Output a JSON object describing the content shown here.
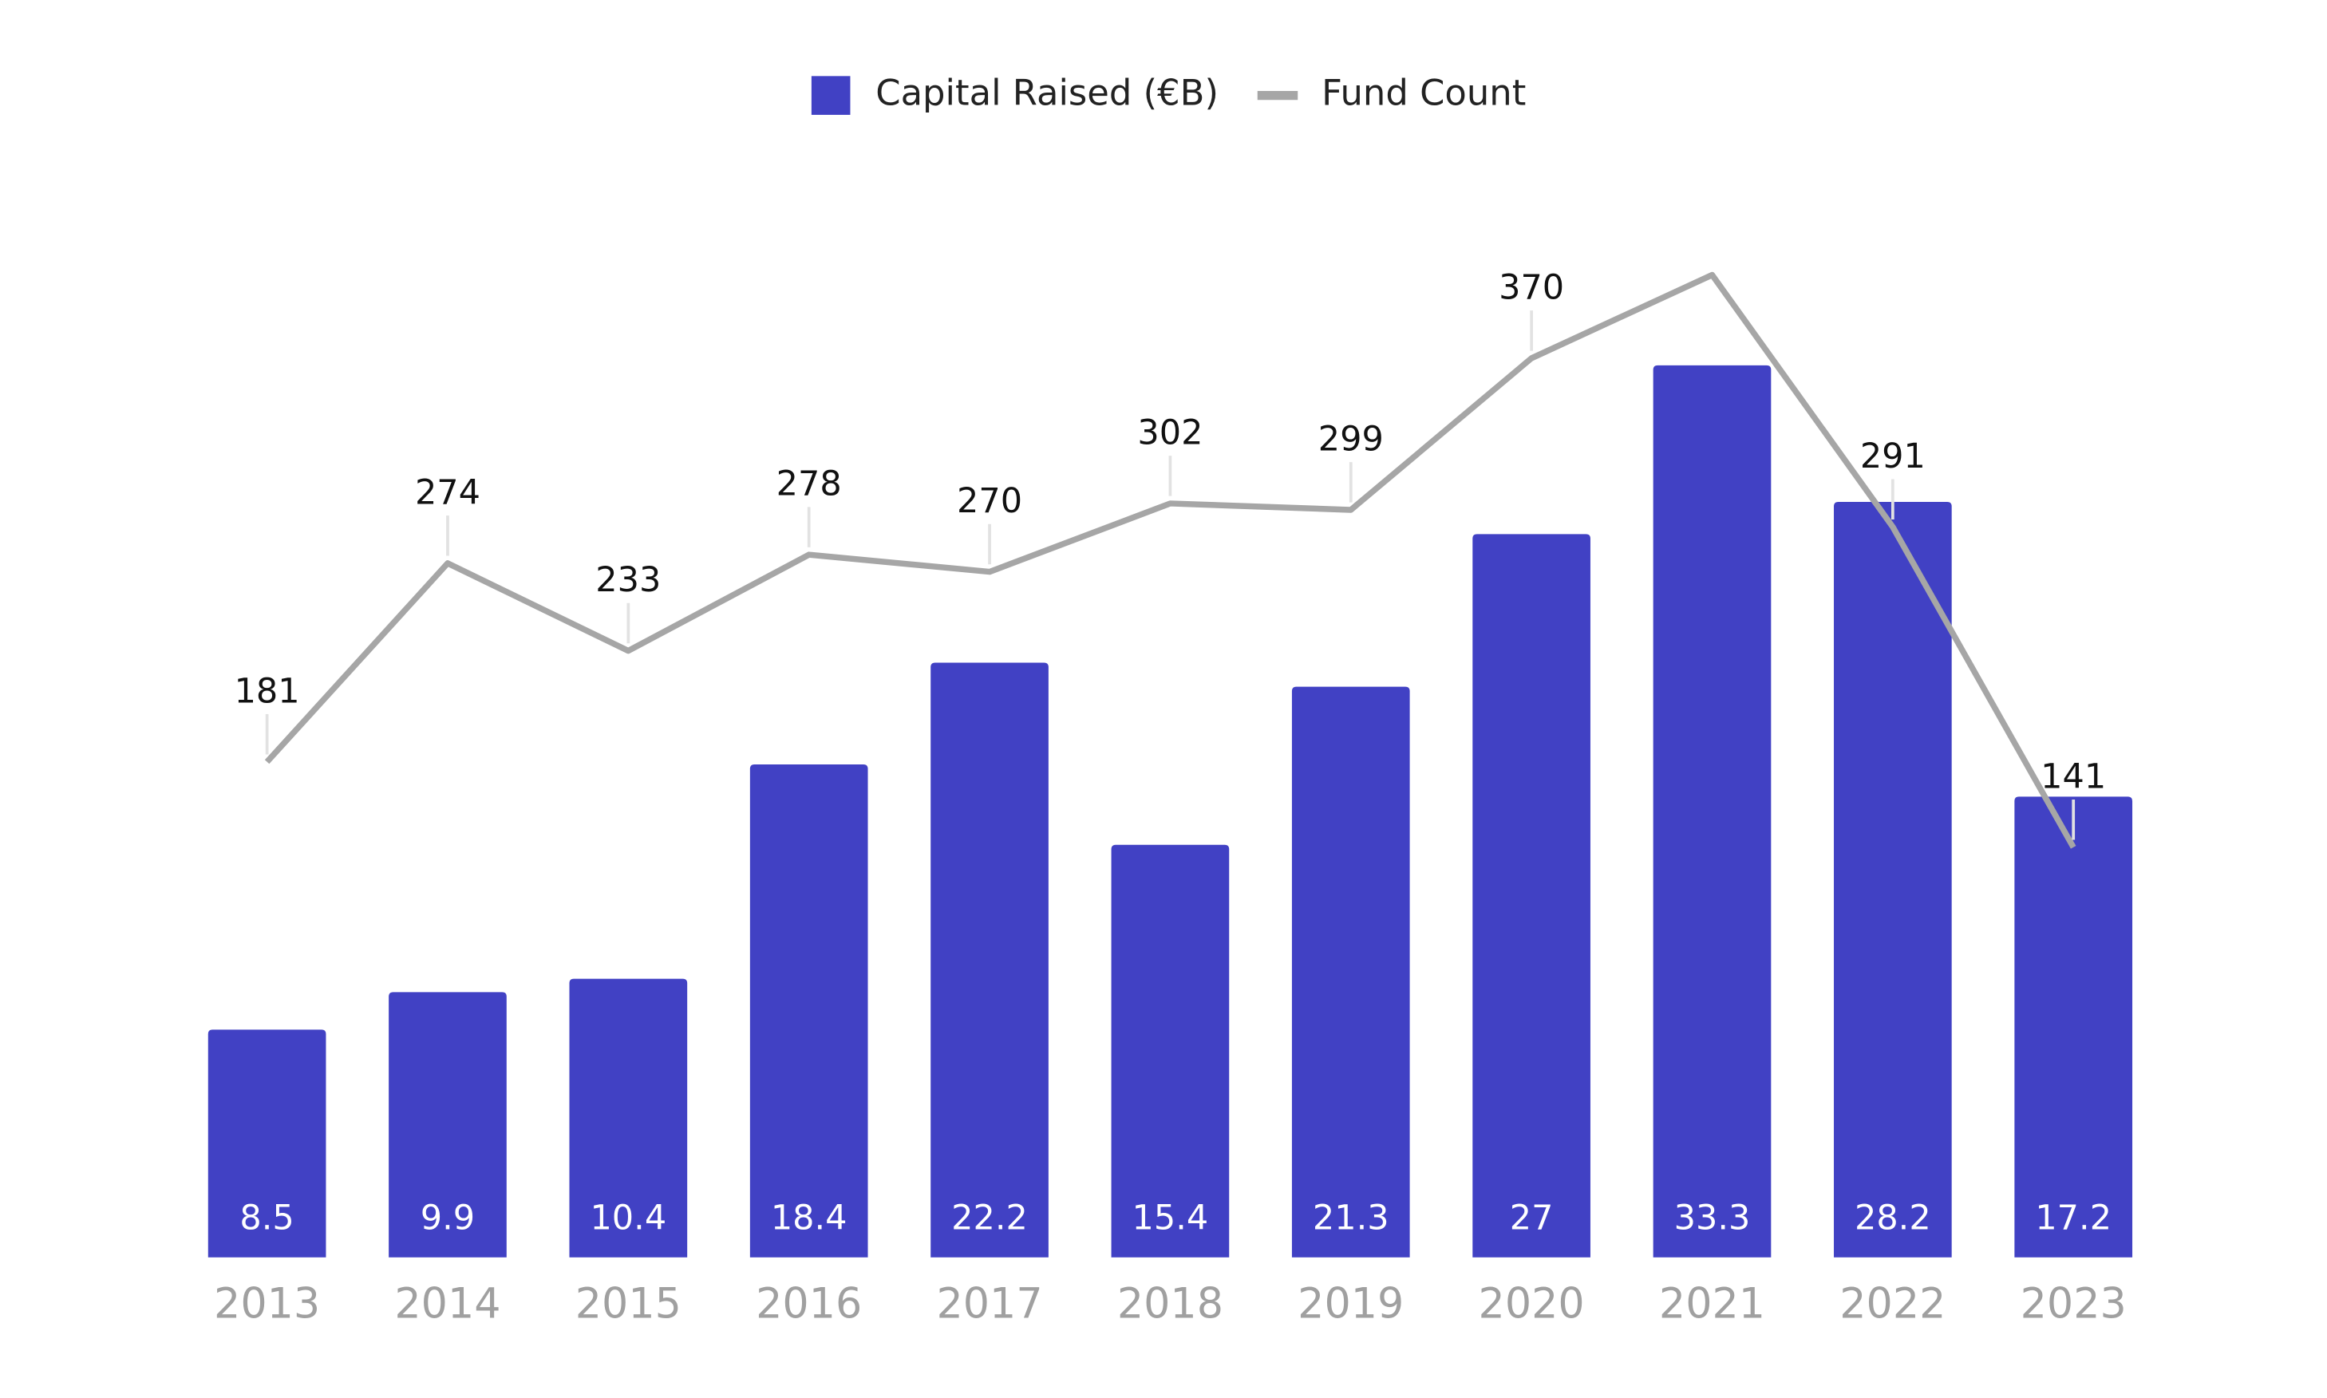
{
  "chart_data": {
    "type": "bar-line",
    "categories": [
      "2013",
      "2014",
      "2015",
      "2016",
      "2017",
      "2018",
      "2019",
      "2020",
      "2021",
      "2022",
      "2023"
    ],
    "series": [
      {
        "name": "Capital Raised (€B)",
        "type": "bar",
        "color": "#4141c4",
        "axis": "y",
        "values": [
          8.5,
          9.9,
          10.4,
          18.4,
          22.2,
          15.4,
          21.3,
          27,
          33.3,
          28.2,
          17.2
        ]
      },
      {
        "name": "Fund Count",
        "type": "line",
        "color": "#a6a6a6",
        "axis": "y2",
        "values": [
          181,
          274,
          233,
          278,
          270,
          302,
          299,
          370,
          409,
          291,
          141
        ],
        "value_labels": [
          "181",
          "274",
          "233",
          "278",
          "270",
          "302",
          "299",
          "370",
          null,
          "291",
          "141"
        ]
      }
    ],
    "ylim": [
      0,
      35
    ],
    "y2lim": [
      -51,
      388
    ],
    "legend": "top"
  }
}
